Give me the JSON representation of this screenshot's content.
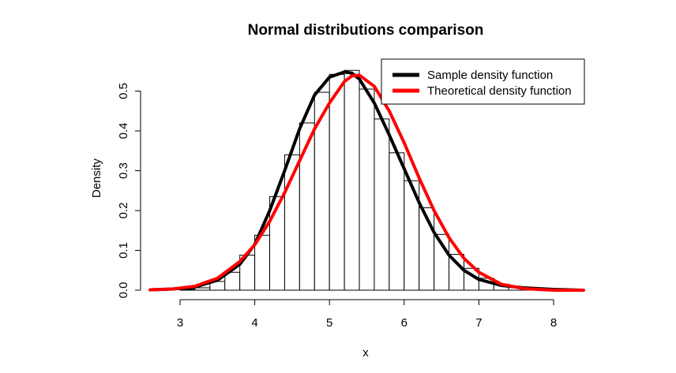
{
  "chart_data": {
    "type": "histogram",
    "title": "Normal distributions comparison",
    "xlabel": "x",
    "ylabel": "Density",
    "xlim": [
      2.6,
      8.4
    ],
    "ylim": [
      0,
      0.55
    ],
    "x_ticks": [
      "3",
      "4",
      "5",
      "6",
      "7",
      "8"
    ],
    "y_ticks": [
      "0.0",
      "0.1",
      "0.2",
      "0.3",
      "0.4",
      "0.5"
    ],
    "grid": false,
    "legend_position": "top-right",
    "histogram": {
      "bin_width": 0.2,
      "bin_starts": [
        2.6,
        2.8,
        3.0,
        3.2,
        3.4,
        3.6,
        3.8,
        4.0,
        4.2,
        4.4,
        4.6,
        4.8,
        5.0,
        5.2,
        5.4,
        5.6,
        5.8,
        6.0,
        6.2,
        6.4,
        6.6,
        6.8,
        7.0,
        7.2,
        7.4,
        7.6,
        7.8,
        8.0,
        8.2
      ],
      "densities": [
        0.0,
        0.0,
        0.002,
        0.006,
        0.022,
        0.045,
        0.088,
        0.138,
        0.235,
        0.34,
        0.42,
        0.497,
        0.542,
        0.552,
        0.505,
        0.43,
        0.345,
        0.275,
        0.207,
        0.14,
        0.09,
        0.055,
        0.03,
        0.015,
        0.007,
        0.003,
        0.001,
        0.0,
        0.0
      ]
    },
    "series": [
      {
        "name": "Sample density function",
        "color": "#000000",
        "x": [
          2.6,
          2.9,
          3.2,
          3.5,
          3.8,
          4.0,
          4.2,
          4.4,
          4.6,
          4.8,
          5.0,
          5.2,
          5.3,
          5.4,
          5.6,
          5.8,
          6.0,
          6.2,
          6.4,
          6.6,
          6.8,
          7.0,
          7.3,
          7.6,
          8.0,
          8.4
        ],
        "y": [
          0.001,
          0.003,
          0.008,
          0.025,
          0.065,
          0.115,
          0.2,
          0.3,
          0.405,
          0.49,
          0.535,
          0.548,
          0.545,
          0.53,
          0.47,
          0.39,
          0.305,
          0.22,
          0.145,
          0.088,
          0.05,
          0.027,
          0.012,
          0.006,
          0.002,
          0.0
        ]
      },
      {
        "name": "Theoretical density function",
        "color": "#ff0000",
        "x": [
          2.6,
          2.9,
          3.2,
          3.5,
          3.8,
          4.0,
          4.2,
          4.4,
          4.6,
          4.8,
          5.0,
          5.2,
          5.3,
          5.4,
          5.6,
          5.8,
          6.0,
          6.2,
          6.4,
          6.6,
          6.8,
          7.0,
          7.3,
          7.6,
          8.0,
          8.4
        ],
        "y": [
          0.001,
          0.003,
          0.01,
          0.03,
          0.072,
          0.114,
          0.173,
          0.245,
          0.325,
          0.405,
          0.47,
          0.524,
          0.538,
          0.54,
          0.512,
          0.45,
          0.37,
          0.282,
          0.2,
          0.132,
          0.08,
          0.045,
          0.015,
          0.004,
          0.0,
          0.0
        ]
      }
    ]
  }
}
